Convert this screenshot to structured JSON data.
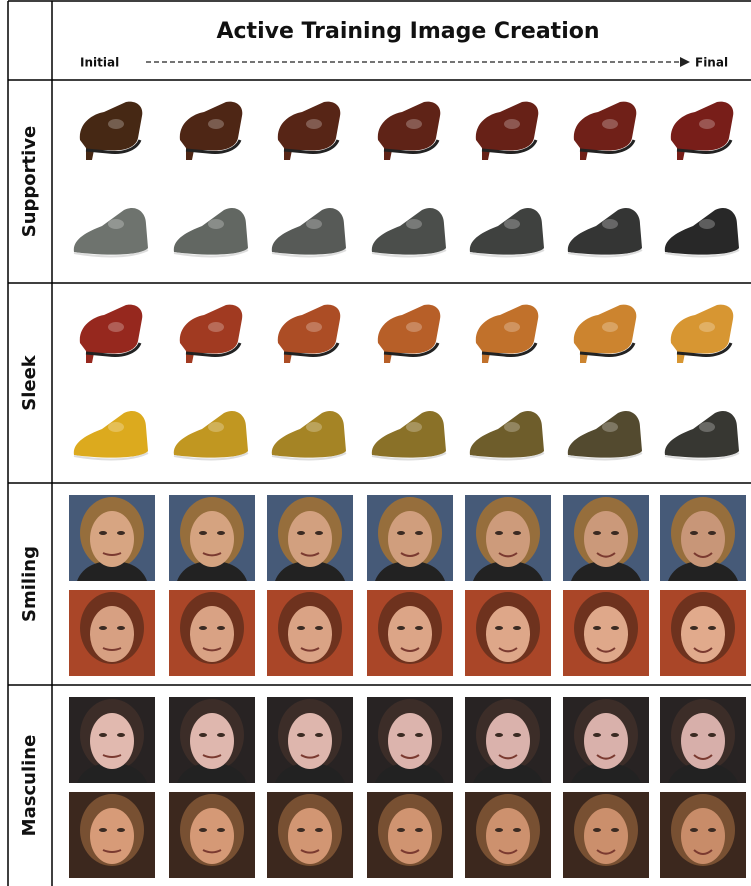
{
  "header": {
    "title": "Active Training Image Creation",
    "start_label": "Initial",
    "end_label": "Final"
  },
  "rows": [
    {
      "label": "Supportive"
    },
    {
      "label": "Sleek"
    },
    {
      "label": "Smiling"
    },
    {
      "label": "Masculine"
    }
  ]
}
